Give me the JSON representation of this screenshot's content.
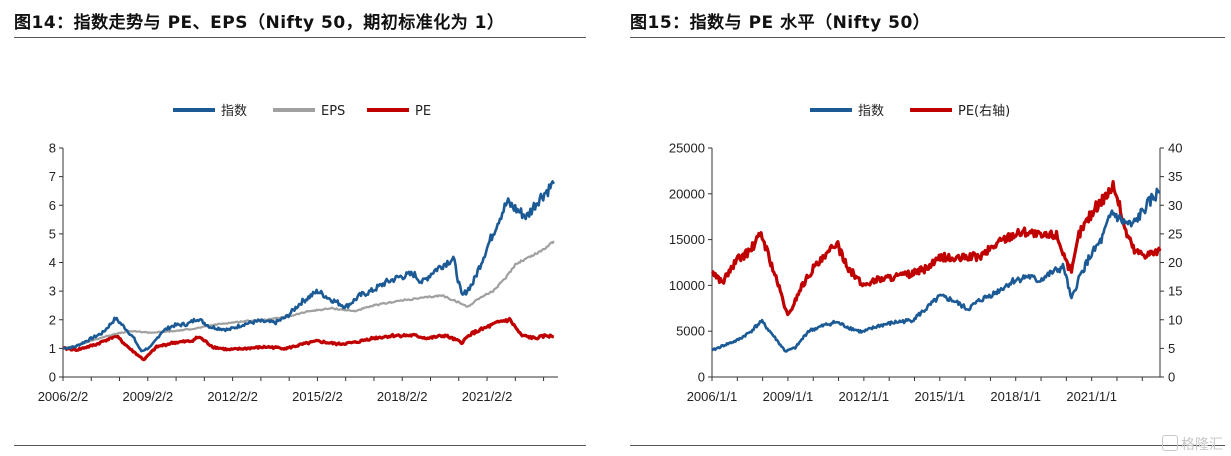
{
  "figures": [
    {
      "caption": "图14：指数走势与 PE、EPS（Nifty 50，期初标准化为 1）"
    },
    {
      "caption": "图15：指数与 PE 水平（Nifty 50）"
    }
  ],
  "watermark": "格隆汇",
  "chart_data": [
    {
      "type": "line",
      "title": "",
      "xlabel": "",
      "ylabel": "",
      "x_tick_labels": [
        "2006/2/2",
        "2009/2/2",
        "2012/2/2",
        "2015/2/2",
        "2018/2/2",
        "2021/2/2"
      ],
      "x_range": [
        2006.09,
        2023.6
      ],
      "y_ticks": [
        0,
        1,
        2,
        3,
        4,
        5,
        6,
        7,
        8
      ],
      "ylim": [
        0,
        8
      ],
      "grid": false,
      "legend_position": "top-center",
      "series": [
        {
          "name": "指数",
          "color": "#1c5a96",
          "x": [
            2006.09,
            2006.5,
            2007.0,
            2007.5,
            2007.95,
            2008.3,
            2008.6,
            2008.85,
            2009.2,
            2009.6,
            2010.0,
            2010.5,
            2010.85,
            2011.3,
            2011.95,
            2012.5,
            2013.0,
            2013.6,
            2014.0,
            2014.5,
            2015.1,
            2015.5,
            2016.1,
            2016.6,
            2017.0,
            2017.5,
            2018.0,
            2018.5,
            2018.8,
            2019.2,
            2019.5,
            2019.9,
            2020.2,
            2020.6,
            2021.0,
            2021.5,
            2021.8,
            2022.2,
            2022.5,
            2022.9,
            2023.2,
            2023.45
          ],
          "y": [
            1.0,
            1.05,
            1.3,
            1.55,
            2.05,
            1.7,
            1.35,
            0.9,
            1.05,
            1.6,
            1.8,
            1.85,
            2.05,
            1.75,
            1.65,
            1.85,
            1.95,
            1.9,
            2.1,
            2.6,
            3.0,
            2.75,
            2.45,
            2.85,
            3.0,
            3.3,
            3.5,
            3.6,
            3.3,
            3.7,
            3.9,
            4.15,
            2.8,
            3.3,
            4.3,
            5.5,
            6.1,
            5.8,
            5.6,
            6.2,
            6.5,
            6.75
          ]
        },
        {
          "name": "EPS",
          "color": "#a0a0a0",
          "x": [
            2006.09,
            2006.6,
            2007.2,
            2007.9,
            2008.5,
            2009.2,
            2010.0,
            2010.8,
            2011.6,
            2012.5,
            2013.3,
            2014.0,
            2014.8,
            2015.6,
            2016.4,
            2017.1,
            2017.9,
            2018.7,
            2019.5,
            2020.1,
            2020.4,
            2020.8,
            2021.3,
            2021.7,
            2022.1,
            2022.6,
            2023.0,
            2023.45
          ],
          "y": [
            1.0,
            1.1,
            1.3,
            1.5,
            1.6,
            1.55,
            1.6,
            1.7,
            1.85,
            1.95,
            2.0,
            2.1,
            2.3,
            2.4,
            2.3,
            2.5,
            2.65,
            2.75,
            2.85,
            2.6,
            2.45,
            2.75,
            3.0,
            3.4,
            3.95,
            4.2,
            4.4,
            4.75
          ]
        },
        {
          "name": "PE",
          "color": "#c00000",
          "x": [
            2006.09,
            2006.6,
            2007.3,
            2007.95,
            2008.5,
            2008.95,
            2009.4,
            2010.0,
            2010.6,
            2010.9,
            2011.4,
            2011.95,
            2012.6,
            2013.3,
            2014.0,
            2014.6,
            2015.1,
            2015.8,
            2016.4,
            2017.0,
            2017.8,
            2018.5,
            2019.0,
            2019.6,
            2020.2,
            2020.5,
            2021.0,
            2021.6,
            2021.9,
            2022.3,
            2022.8,
            2023.2,
            2023.45
          ],
          "y": [
            1.0,
            0.95,
            1.15,
            1.45,
            0.95,
            0.6,
            1.05,
            1.2,
            1.25,
            1.4,
            1.05,
            0.95,
            1.0,
            1.05,
            1.0,
            1.15,
            1.25,
            1.15,
            1.2,
            1.35,
            1.45,
            1.45,
            1.35,
            1.45,
            1.2,
            1.5,
            1.7,
            1.95,
            2.0,
            1.45,
            1.35,
            1.45,
            1.4
          ]
        }
      ]
    },
    {
      "type": "line",
      "title": "",
      "xlabel": "",
      "ylabel": "",
      "x_tick_labels": [
        "2006/1/1",
        "2009/1/1",
        "2012/1/1",
        "2015/1/1",
        "2018/1/1",
        "2021/1/1"
      ],
      "x_range": [
        2006.0,
        2023.7
      ],
      "y_ticks": [
        0,
        5000,
        10000,
        15000,
        20000,
        25000
      ],
      "ylim": [
        0,
        25000
      ],
      "y2_ticks": [
        0,
        5,
        10,
        15,
        20,
        25,
        30,
        35,
        40
      ],
      "y2lim": [
        0,
        40
      ],
      "grid": false,
      "legend_position": "top-center",
      "series": [
        {
          "name": "指数",
          "color": "#1c5a96",
          "axis": "left",
          "x": [
            2006.0,
            2006.5,
            2007.0,
            2007.5,
            2007.95,
            2008.4,
            2008.9,
            2009.3,
            2009.8,
            2010.5,
            2010.9,
            2011.5,
            2011.95,
            2012.6,
            2013.3,
            2013.9,
            2014.4,
            2015.0,
            2015.5,
            2016.1,
            2016.6,
            2017.2,
            2017.9,
            2018.5,
            2018.9,
            2019.5,
            2019.9,
            2020.2,
            2020.5,
            2020.9,
            2021.4,
            2021.8,
            2022.2,
            2022.6,
            2023.0,
            2023.4,
            2023.7
          ],
          "y": [
            2900,
            3500,
            4000,
            4900,
            6100,
            4600,
            2800,
            3200,
            5000,
            5700,
            6000,
            5300,
            4900,
            5600,
            6000,
            6200,
            7300,
            8800,
            8400,
            7400,
            8400,
            9200,
            10500,
            11000,
            10500,
            11500,
            12000,
            8400,
            10800,
            13000,
            15000,
            18000,
            17000,
            16500,
            18000,
            19500,
            20300
          ]
        },
        {
          "name": "PE(右轴)",
          "color": "#c00000",
          "axis": "right",
          "x": [
            2006.0,
            2006.4,
            2007.0,
            2007.5,
            2007.95,
            2008.4,
            2008.8,
            2009.0,
            2009.5,
            2010.0,
            2010.5,
            2010.9,
            2011.4,
            2011.95,
            2012.5,
            2013.2,
            2013.9,
            2014.5,
            2015.1,
            2015.6,
            2016.1,
            2016.6,
            2017.3,
            2017.9,
            2018.5,
            2019.0,
            2019.6,
            2020.2,
            2020.5,
            2020.9,
            2021.3,
            2021.7,
            2021.9,
            2022.3,
            2022.7,
            2023.1,
            2023.7
          ],
          "y": [
            18.5,
            16.5,
            20.5,
            22.0,
            25.0,
            19.0,
            13.5,
            10.5,
            15.5,
            19.0,
            21.0,
            23.5,
            19.0,
            16.0,
            17.0,
            17.5,
            18.0,
            19.0,
            21.0,
            20.5,
            21.0,
            21.0,
            23.5,
            25.0,
            25.5,
            24.5,
            25.0,
            18.0,
            25.0,
            28.0,
            30.5,
            32.5,
            33.5,
            26.0,
            22.0,
            21.5,
            22.0
          ]
        }
      ]
    }
  ]
}
